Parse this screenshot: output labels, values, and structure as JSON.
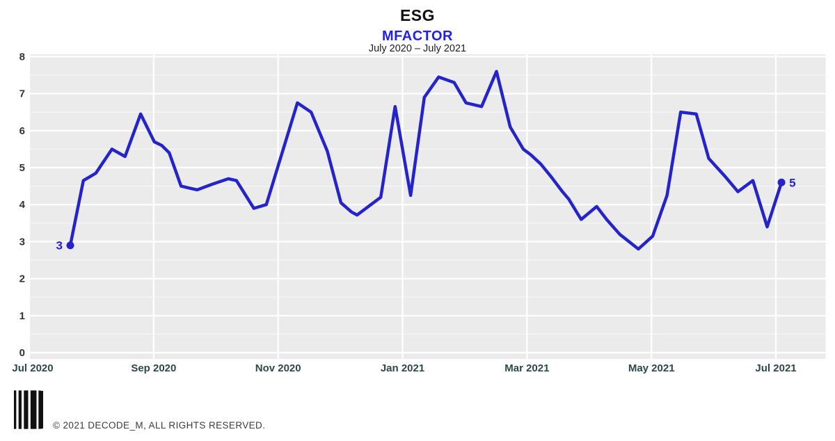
{
  "header": {
    "title": "ESG",
    "subtitle": "MFACTOR",
    "period": "July 2020 – July 2021"
  },
  "footer": {
    "copyright": "© 2021 DECODE_M, ALL RIGHTS RESERVED."
  },
  "colors": {
    "line": "#2524cb",
    "subtitle_blue": "#2320e8",
    "plot_background": "#ebebeb",
    "grid_major": "#ffffff",
    "x_tick_text": "#2d4848",
    "y_tick_text": "#333333",
    "logo_black": "#111111"
  },
  "chart_data": {
    "type": "line",
    "title": "ESG",
    "series_name": "MFACTOR",
    "date_range": "July 2020 – July 2021",
    "x_axis_note": "x = months after Jul 2020 tick, weekly samples",
    "x_tick_labels": [
      "Jul 2020",
      "Sep 2020",
      "Nov 2020",
      "Jan 2021",
      "Mar 2021",
      "May 2021",
      "Jul 2021"
    ],
    "x_tick_months": [
      0,
      2,
      4,
      6,
      8,
      10,
      12
    ],
    "y_ticks": [
      0,
      1,
      2,
      3,
      4,
      5,
      6,
      7,
      8
    ],
    "ylim": [
      0,
      8
    ],
    "xlim_months": [
      0,
      12.8
    ],
    "grid": true,
    "legend_position": "none",
    "start_point_label": "3",
    "end_point_label": "5",
    "points": [
      [
        0.66,
        2.9
      ],
      [
        0.87,
        4.65
      ],
      [
        1.07,
        4.85
      ],
      [
        1.33,
        5.5
      ],
      [
        1.54,
        5.3
      ],
      [
        1.79,
        6.45
      ],
      [
        2.01,
        5.7
      ],
      [
        2.13,
        5.6
      ],
      [
        2.25,
        5.4
      ],
      [
        2.44,
        4.5
      ],
      [
        2.57,
        4.45
      ],
      [
        2.7,
        4.4
      ],
      [
        2.94,
        4.55
      ],
      [
        3.2,
        4.7
      ],
      [
        3.33,
        4.65
      ],
      [
        3.61,
        3.9
      ],
      [
        3.81,
        4.0
      ],
      [
        4.31,
        6.75
      ],
      [
        4.53,
        6.5
      ],
      [
        4.79,
        5.45
      ],
      [
        5.01,
        4.05
      ],
      [
        5.18,
        3.8
      ],
      [
        5.27,
        3.72
      ],
      [
        5.65,
        4.2
      ],
      [
        5.88,
        6.65
      ],
      [
        6.13,
        4.25
      ],
      [
        6.35,
        6.9
      ],
      [
        6.58,
        7.45
      ],
      [
        6.83,
        7.3
      ],
      [
        7.02,
        6.75
      ],
      [
        7.27,
        6.65
      ],
      [
        7.51,
        7.6
      ],
      [
        7.73,
        6.1
      ],
      [
        7.94,
        5.5
      ],
      [
        8.06,
        5.35
      ],
      [
        8.22,
        5.1
      ],
      [
        8.39,
        4.75
      ],
      [
        8.57,
        4.35
      ],
      [
        8.67,
        4.15
      ],
      [
        8.87,
        3.6
      ],
      [
        9.12,
        3.95
      ],
      [
        9.28,
        3.6
      ],
      [
        9.49,
        3.2
      ],
      [
        9.79,
        2.8
      ],
      [
        10.02,
        3.15
      ],
      [
        10.25,
        4.25
      ],
      [
        10.47,
        6.5
      ],
      [
        10.72,
        6.45
      ],
      [
        10.92,
        5.25
      ],
      [
        11.19,
        4.75
      ],
      [
        11.39,
        4.35
      ],
      [
        11.63,
        4.65
      ],
      [
        11.86,
        3.4
      ],
      [
        12.09,
        4.6
      ]
    ]
  }
}
